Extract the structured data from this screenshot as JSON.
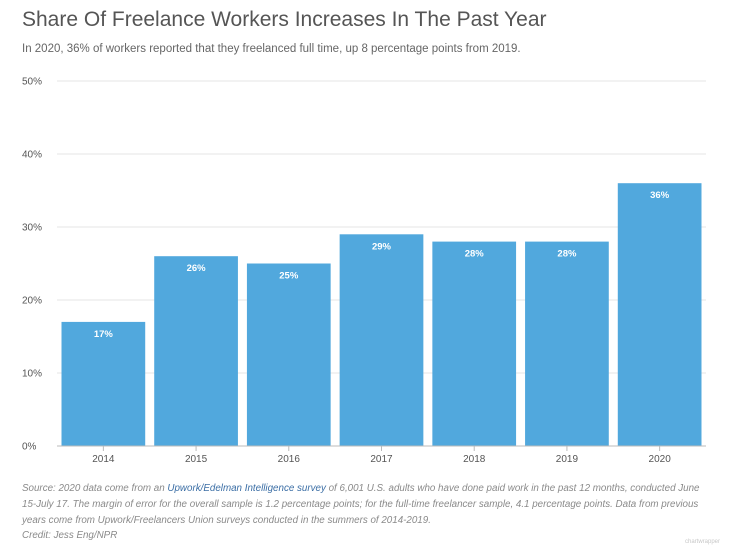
{
  "header": {
    "title": "Share Of Freelance Workers Increases In The Past Year",
    "subtitle": "In 2020, 36% of workers reported that they freelanced full time, up 8 percentage points from 2019."
  },
  "footer": {
    "source_prefix": "Source: 2020 data come from an ",
    "source_link": "Upwork/Edelman Intelligence survey",
    "source_rest": " of 6,001 U.S. adults who have done paid work in the past 12 months, conducted June 15-July 17. The margin of error for the overall sample is 1.2 percentage points; for the full-time freelancer sample, 4.1 percentage points. Data from previous years come from Upwork/Freelancers Union surveys conducted in the summers of 2014-2019.",
    "credit": "Credit: Jess Eng/NPR",
    "watermark": "chartwrapper"
  },
  "colors": {
    "bar": "#51a8dd",
    "grid": "#e6e6e6",
    "axis": "#bbbbbb"
  },
  "chart_data": {
    "type": "bar",
    "title": "Share Of Freelance Workers Increases In The Past Year",
    "xlabel": "",
    "ylabel": "",
    "categories": [
      "2014",
      "2015",
      "2016",
      "2017",
      "2018",
      "2019",
      "2020"
    ],
    "values": [
      17,
      26,
      25,
      29,
      28,
      28,
      36
    ],
    "data_labels": [
      "17%",
      "26%",
      "25%",
      "29%",
      "28%",
      "28%",
      "36%"
    ],
    "ylim": [
      0,
      50
    ],
    "yticks": [
      0,
      10,
      20,
      30,
      40,
      50
    ],
    "ytick_labels": [
      "0%",
      "10%",
      "20%",
      "30%",
      "40%",
      "50%"
    ],
    "grid": true,
    "legend": "none"
  }
}
